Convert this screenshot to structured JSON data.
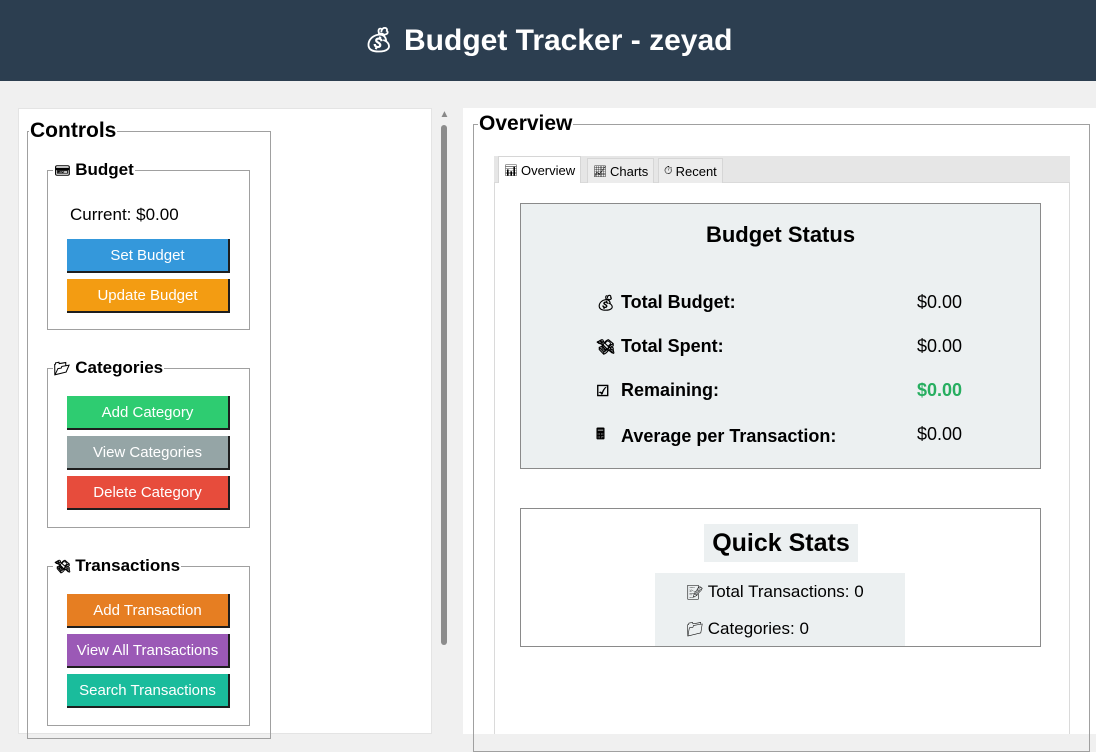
{
  "window": {
    "title": "Budget Tracker - zeyad",
    "title_icon": "money-bag-icon"
  },
  "controls": {
    "legend": "Controls",
    "budget": {
      "legend": "Budget",
      "icon": "credit-card-icon",
      "current": "Current: $0.00",
      "buttons": {
        "set": "Set Budget",
        "update": "Update Budget"
      }
    },
    "categories": {
      "legend": "Categories",
      "icon": "folder-icon",
      "buttons": {
        "add": "Add Category",
        "view": "View Categories",
        "delete": "Delete Category"
      }
    },
    "transactions": {
      "legend": "Transactions",
      "icon": "money-wings-icon",
      "buttons": {
        "add": "Add Transaction",
        "view_all": "View All Transactions",
        "search": "Search Transactions"
      }
    }
  },
  "overview": {
    "legend": "Overview",
    "tabs": [
      {
        "label": "Overview",
        "icon": "bar-chart-icon",
        "active": true
      },
      {
        "label": "Charts",
        "icon": "line-chart-icon",
        "active": false
      },
      {
        "label": "Recent",
        "icon": "clock-icon",
        "active": false
      }
    ],
    "budget_status": {
      "title": "Budget Status",
      "rows": [
        {
          "label": "Total Budget:",
          "value": "$0.00",
          "icon": "money-bag-icon"
        },
        {
          "label": "Total Spent:",
          "value": "$0.00",
          "icon": "money-wings-icon"
        },
        {
          "label": "Remaining:",
          "value": "$0.00",
          "icon": "check-box-icon"
        },
        {
          "label": "Average per Transaction:",
          "value": "$0.00",
          "icon": "calculator-icon"
        }
      ]
    },
    "quick_stats": {
      "title": "Quick Stats",
      "total_transactions": "Total Transactions: 0",
      "categories": "Categories: 0"
    }
  },
  "colors": {
    "header": "#2c3e50",
    "set_budget": "#3498db",
    "update_budget": "#f39c12",
    "add_category": "#2ecc71",
    "view_categories": "#95a5a6",
    "delete_category": "#e74c3c",
    "add_transaction": "#e67e22",
    "view_all_transactions": "#9b59b6",
    "search_transactions": "#1abc9c",
    "remaining_value": "#27ae60",
    "status_background": "#ecf0f1"
  }
}
